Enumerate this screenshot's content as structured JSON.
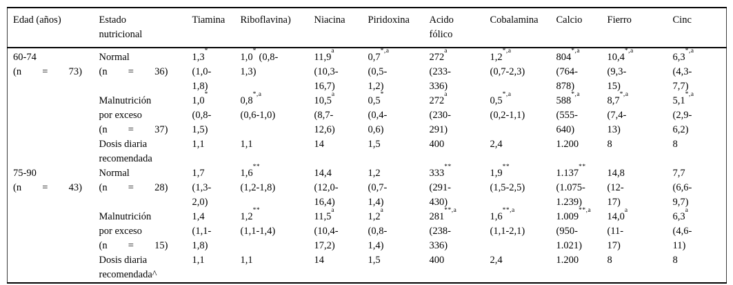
{
  "table": {
    "columns": [
      {
        "id": "edad",
        "lines": [
          "Edad (años)"
        ]
      },
      {
        "id": "estado",
        "lines": [
          "Estado",
          "nutricional"
        ]
      },
      {
        "id": "tiamina",
        "lines": [
          "Tiamina"
        ]
      },
      {
        "id": "riboflavina",
        "lines": [
          "Riboflavina)"
        ]
      },
      {
        "id": "niacina",
        "lines": [
          "Niacina"
        ]
      },
      {
        "id": "piridoxina",
        "lines": [
          "Piridoxina"
        ]
      },
      {
        "id": "acido-folico",
        "lines": [
          "Acido",
          "fólico"
        ]
      },
      {
        "id": "cobalamina",
        "lines": [
          "Cobalamina"
        ]
      },
      {
        "id": "calcio",
        "lines": [
          "Calcio"
        ]
      },
      {
        "id": "fierro",
        "lines": [
          "Fierro"
        ]
      },
      {
        "id": "cinc",
        "lines": [
          "Cinc"
        ]
      }
    ],
    "rows": [
      {
        "id": "60-74-normal",
        "cells": [
          [
            "60-74",
            {
              "j": [
                "(n",
                "=",
                "73)"
              ]
            }
          ],
          [
            "Normal",
            {
              "j": [
                "(n",
                "=",
                "36)"
              ]
            }
          ],
          [
            "1,3^{*}",
            "(1,0-",
            "1,8)"
          ],
          [
            "1,0^{*} (0,8-",
            "1,3)"
          ],
          [
            "11,9^{a}",
            "(10,3-",
            "16,7)"
          ],
          [
            "0,7^{*,a}",
            "(0,5-",
            "1,2)"
          ],
          [
            "272^{a}",
            "(233-",
            "336)"
          ],
          [
            "1,2^{*,a}",
            "(0,7-2,3)"
          ],
          [
            "804^{*,a}",
            "(764-",
            "878)"
          ],
          [
            "10,4^{*,a}",
            "(9,3-",
            "15)"
          ],
          [
            "6,3^{*,a}",
            "(4,3-",
            "7,7)"
          ]
        ]
      },
      {
        "id": "60-74-malnutricion",
        "cells": [
          [],
          [
            "Malnutrición",
            "por exceso",
            {
              "j": [
                "(n",
                "=",
                "37)"
              ]
            }
          ],
          [
            "1,0^{*}",
            "(0,8-",
            "1,5)"
          ],
          [
            "0,8^{*,a}",
            "(0,6-1,0)"
          ],
          [
            "10,5^{a}",
            "(8,7-",
            "12,6)"
          ],
          [
            "0,5^{*}",
            "(0,4-",
            "0,6)"
          ],
          [
            "272^{a}",
            "(230-",
            "291)"
          ],
          [
            "0,5^{*,a}",
            "(0,2-1,1)"
          ],
          [
            "588^{*,a}",
            "(555-",
            "640)"
          ],
          [
            "8,7^{*,a}",
            "(7,4-",
            "13)"
          ],
          [
            "5,1^{*,a}",
            "(2,9-",
            "6,2)"
          ]
        ]
      },
      {
        "id": "60-74-dosis",
        "cells": [
          [],
          [
            "Dosis diaria",
            "recomendada"
          ],
          [
            "1,1"
          ],
          [
            "1,1"
          ],
          [
            "14"
          ],
          [
            "1,5"
          ],
          [
            "400"
          ],
          [
            "2,4"
          ],
          [
            "1.200"
          ],
          [
            "8"
          ],
          [
            "8"
          ]
        ]
      },
      {
        "id": "75-90-normal",
        "cells": [
          [
            "75-90",
            {
              "j": [
                "(n",
                "=",
                "43)"
              ]
            }
          ],
          [
            "Normal",
            {
              "j": [
                "(n",
                "=",
                "28)"
              ]
            }
          ],
          [
            "1,7",
            "(1,3-",
            "2,0)"
          ],
          [
            "1,6^{**}",
            "(1,2-1,8)"
          ],
          [
            "14,4",
            "(12,0-",
            "16,4)"
          ],
          [
            "1,2",
            "(0,7-",
            "1,4)"
          ],
          [
            "333^{**}",
            "(291-",
            "430)"
          ],
          [
            "1,9^{**}",
            "(1,5-2,5)"
          ],
          [
            "1.137^{**}",
            "(1.075-",
            "1.239)"
          ],
          [
            "14,8",
            "(12-",
            "17)"
          ],
          [
            "7,7",
            "(6,6-",
            "9,7)"
          ]
        ]
      },
      {
        "id": "75-90-malnutricion",
        "cells": [
          [],
          [
            "Malnutrición",
            "por exceso",
            {
              "j": [
                "(n",
                "=",
                "15)"
              ]
            }
          ],
          [
            "1,4",
            "(1,1-",
            "1,8)"
          ],
          [
            "1,2^{**}",
            "(1,1-1,4)"
          ],
          [
            "11,5^{a}",
            "(10,4-",
            "17,2)"
          ],
          [
            "1,2^{a}",
            "(0,8-",
            "1,4)"
          ],
          [
            "281^{**,a}",
            "(238-",
            "336)"
          ],
          [
            "1,6^{**,a}",
            "(1,1-2,1)"
          ],
          [
            "1.009^{**,a}",
            "(950-",
            "1.021)"
          ],
          [
            "14,0^{a}",
            "(11-",
            "17)"
          ],
          [
            "6,3^{a}",
            "(4,6-",
            "11)"
          ]
        ]
      },
      {
        "id": "75-90-dosis",
        "cells": [
          [],
          [
            "Dosis diaria",
            "recomendada^"
          ],
          [
            "1,1"
          ],
          [
            "1,1"
          ],
          [
            "14"
          ],
          [
            "1,5"
          ],
          [
            "400"
          ],
          [
            "2,4"
          ],
          [
            "1.200"
          ],
          [
            "8"
          ],
          [
            "8"
          ]
        ]
      }
    ]
  }
}
